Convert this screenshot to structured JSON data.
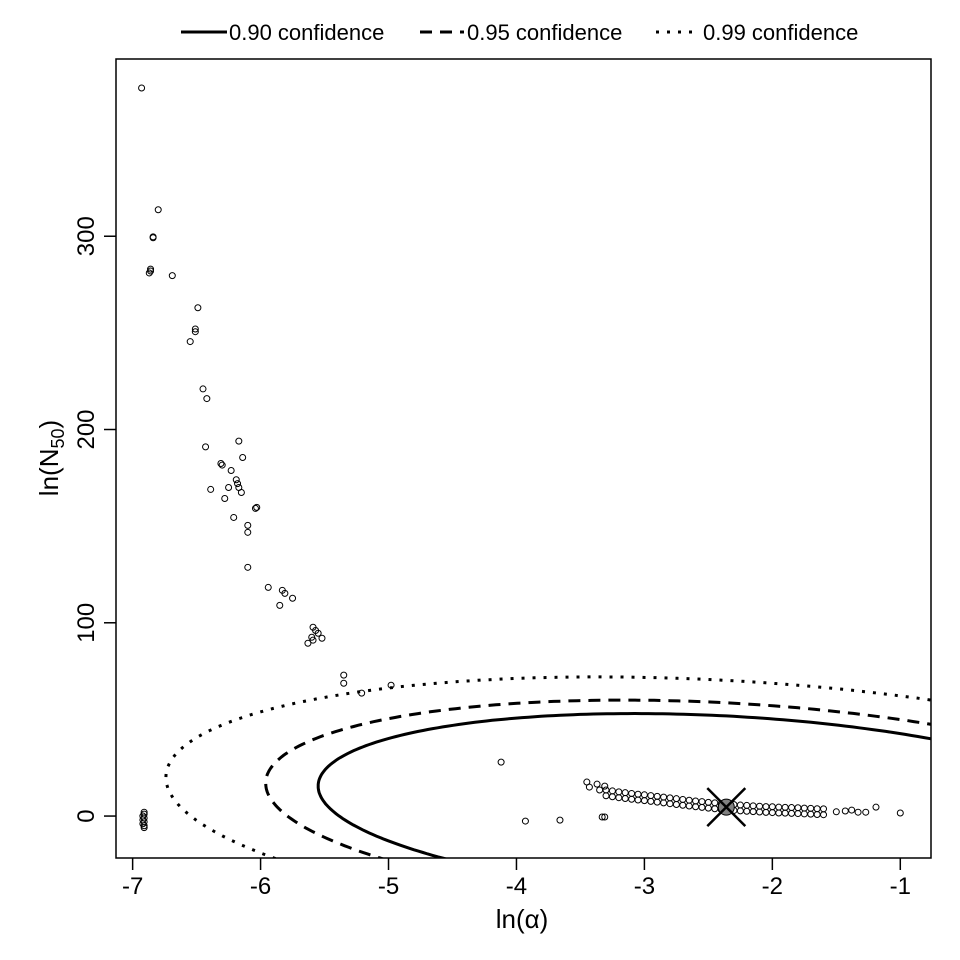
{
  "chart_data": {
    "type": "scatter",
    "title": "",
    "xlabel": "ln(α)",
    "ylabel_main": "ln(N",
    "ylabel_sub": "50",
    "ylabel_close": ")",
    "xlim": [
      -7.13,
      -0.76
    ],
    "ylim": [
      -21.7,
      391.7
    ],
    "x_ticks": [
      -7,
      -6,
      -5,
      -4,
      -3,
      -2,
      -1
    ],
    "x_tick_labels": [
      "-7",
      "-6",
      "-5",
      "-4",
      "-3",
      "-2",
      "-1"
    ],
    "y_ticks": [
      0,
      100,
      200,
      300
    ],
    "y_tick_labels": [
      "0",
      "100",
      "200",
      "300"
    ],
    "grid": false,
    "legend_position": "top",
    "legend": [
      {
        "label": "0.90 confidence",
        "style": "solid"
      },
      {
        "label": "0.95 confidence",
        "style": "dashed"
      },
      {
        "label": "0.99 confidence",
        "style": "dotted"
      }
    ],
    "mle_point": {
      "x": -2.36,
      "y": 4.6,
      "color": "#808080"
    },
    "contours": [
      {
        "level": 0.9,
        "style": "solid",
        "center": [
          -2.36,
          4.6
        ],
        "half_width": 3.19,
        "half_height": 47.2,
        "shear": -3.42
      },
      {
        "level": 0.95,
        "style": "dashed",
        "center": [
          -2.36,
          4.6
        ],
        "half_width": 3.6,
        "half_height": 54.0,
        "shear": -3.44
      },
      {
        "level": 0.99,
        "style": "dotted",
        "center": [
          -2.36,
          4.6
        ],
        "half_width": 4.38,
        "half_height": 65.6,
        "shear": -3.52
      }
    ],
    "points": [
      [
        -6.93,
        376.7
      ],
      [
        -6.8,
        313.7
      ],
      [
        -6.84,
        299.7
      ],
      [
        -6.84,
        299.2
      ],
      [
        -6.86,
        283.0
      ],
      [
        -6.86,
        282.0
      ],
      [
        -6.87,
        281.0
      ],
      [
        -6.69,
        279.6
      ],
      [
        -6.49,
        263.0
      ],
      [
        -6.51,
        252.0
      ],
      [
        -6.51,
        250.6
      ],
      [
        -6.55,
        245.5
      ],
      [
        -6.45,
        221.0
      ],
      [
        -6.42,
        216.0
      ],
      [
        -6.43,
        191.0
      ],
      [
        -6.17,
        194.0
      ],
      [
        -6.14,
        185.5
      ],
      [
        -6.31,
        182.4
      ],
      [
        -6.3,
        181.6
      ],
      [
        -6.23,
        178.8
      ],
      [
        -6.19,
        174.0
      ],
      [
        -6.18,
        172.0
      ],
      [
        -6.17,
        170.0
      ],
      [
        -6.25,
        170.0
      ],
      [
        -6.15,
        167.4
      ],
      [
        -6.39,
        169.0
      ],
      [
        -6.28,
        164.3
      ],
      [
        -6.03,
        159.7
      ],
      [
        -6.04,
        159.2
      ],
      [
        -6.21,
        154.5
      ],
      [
        -6.1,
        150.4
      ],
      [
        -6.1,
        146.8
      ],
      [
        -6.1,
        128.7
      ],
      [
        -5.94,
        118.3
      ],
      [
        -5.83,
        116.8
      ],
      [
        -5.81,
        115.2
      ],
      [
        -5.85,
        109.0
      ],
      [
        -5.75,
        112.7
      ],
      [
        -5.59,
        97.7
      ],
      [
        -5.57,
        96.0
      ],
      [
        -5.55,
        94.6
      ],
      [
        -5.6,
        92.5
      ],
      [
        -5.59,
        91.0
      ],
      [
        -5.52,
        92.0
      ],
      [
        -5.63,
        89.4
      ],
      [
        -5.35,
        72.9
      ],
      [
        -5.35,
        68.7
      ],
      [
        -5.21,
        63.6
      ],
      [
        -4.98,
        67.7
      ],
      [
        -4.12,
        27.9
      ],
      [
        -3.93,
        -2.6
      ],
      [
        -3.66,
        -2.1
      ],
      [
        -3.33,
        -0.5
      ],
      [
        -3.31,
        -0.5
      ],
      [
        -1.0,
        1.6
      ],
      [
        -6.91,
        2.0
      ],
      [
        -6.91,
        1.0
      ],
      [
        -6.92,
        0.0
      ],
      [
        -6.91,
        -1.0
      ],
      [
        -6.92,
        -2.0
      ],
      [
        -6.91,
        -3.0
      ],
      [
        -6.92,
        -4.0
      ],
      [
        -6.91,
        -5.0
      ],
      [
        -6.91,
        -6.0
      ],
      [
        -3.45,
        17.6
      ],
      [
        -3.43,
        15.0
      ],
      [
        -3.37,
        16.5
      ],
      [
        -3.31,
        15.5
      ],
      [
        -3.35,
        13.5
      ],
      [
        -1.43,
        2.6
      ],
      [
        -1.38,
        3.1
      ],
      [
        -1.33,
        2.0
      ],
      [
        -1.27,
        2.0
      ],
      [
        -1.19,
        4.6
      ],
      [
        -1.5,
        2.2
      ],
      [
        -3.3,
        13.5
      ],
      [
        -3.3,
        10.5
      ],
      [
        -3.25,
        13.0
      ],
      [
        -3.25,
        10.0
      ],
      [
        -3.2,
        12.5
      ],
      [
        -3.2,
        9.5
      ],
      [
        -3.15,
        12.1
      ],
      [
        -3.15,
        9.1
      ],
      [
        -3.1,
        11.7
      ],
      [
        -3.1,
        8.7
      ],
      [
        -3.05,
        11.3
      ],
      [
        -3.05,
        8.3
      ],
      [
        -3.0,
        11.0
      ],
      [
        -3.0,
        8.0
      ],
      [
        -2.95,
        10.6
      ],
      [
        -2.95,
        7.6
      ],
      [
        -2.9,
        10.2
      ],
      [
        -2.9,
        7.2
      ],
      [
        -2.85,
        9.8
      ],
      [
        -2.85,
        6.8
      ],
      [
        -2.8,
        9.4
      ],
      [
        -2.8,
        6.4
      ],
      [
        -2.75,
        9.0
      ],
      [
        -2.75,
        6.0
      ],
      [
        -2.7,
        8.6
      ],
      [
        -2.7,
        5.6
      ],
      [
        -2.65,
        8.2
      ],
      [
        -2.65,
        5.2
      ],
      [
        -2.6,
        7.8
      ],
      [
        -2.6,
        4.8
      ],
      [
        -2.55,
        7.5
      ],
      [
        -2.55,
        4.5
      ],
      [
        -2.5,
        7.1
      ],
      [
        -2.5,
        4.1
      ],
      [
        -2.45,
        6.8
      ],
      [
        -2.45,
        3.8
      ],
      [
        -2.4,
        6.4
      ],
      [
        -2.4,
        3.4
      ],
      [
        -2.35,
        6.1
      ],
      [
        -2.35,
        3.1
      ],
      [
        -2.3,
        5.9
      ],
      [
        -2.3,
        2.9
      ],
      [
        -2.25,
        5.7
      ],
      [
        -2.25,
        2.7
      ],
      [
        -2.2,
        5.5
      ],
      [
        -2.2,
        2.5
      ],
      [
        -2.15,
        5.3
      ],
      [
        -2.15,
        2.3
      ],
      [
        -2.1,
        5.1
      ],
      [
        -2.1,
        2.1
      ],
      [
        -2.05,
        4.9
      ],
      [
        -2.05,
        1.9
      ],
      [
        -2.0,
        4.8
      ],
      [
        -2.0,
        1.8
      ],
      [
        -1.95,
        4.6
      ],
      [
        -1.95,
        1.6
      ],
      [
        -1.9,
        4.5
      ],
      [
        -1.9,
        1.5
      ],
      [
        -1.85,
        4.4
      ],
      [
        -1.85,
        1.4
      ],
      [
        -1.8,
        4.3
      ],
      [
        -1.8,
        1.3
      ],
      [
        -1.75,
        4.1
      ],
      [
        -1.75,
        1.1
      ],
      [
        -1.7,
        4.0
      ],
      [
        -1.7,
        1.0
      ],
      [
        -1.65,
        3.8
      ],
      [
        -1.65,
        0.8
      ],
      [
        -1.6,
        3.7
      ],
      [
        -1.6,
        0.7
      ]
    ]
  }
}
